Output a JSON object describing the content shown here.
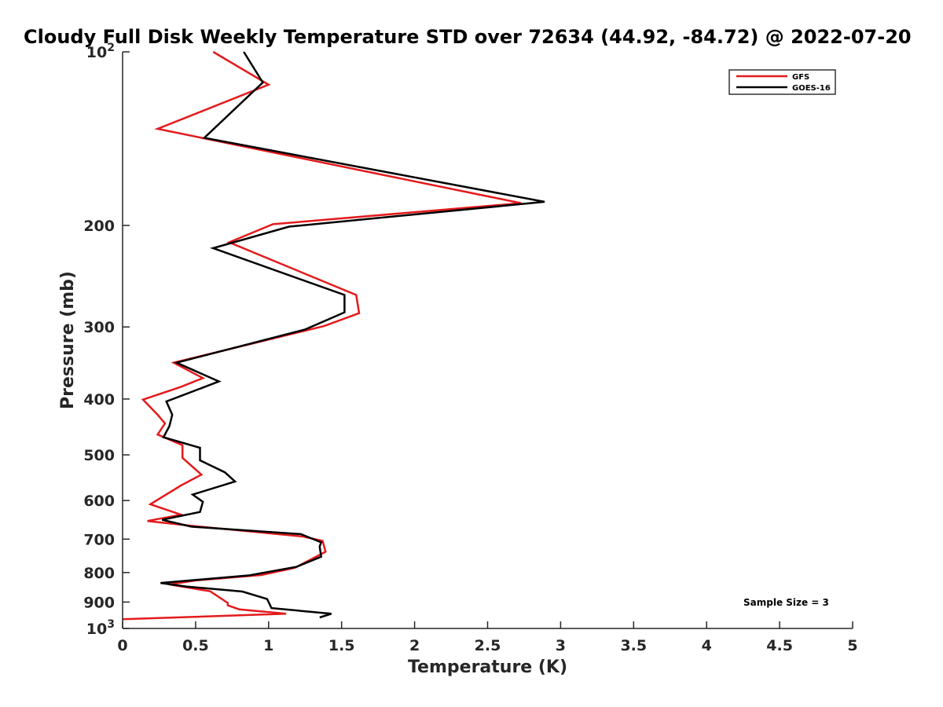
{
  "chart_data": {
    "type": "line",
    "title": "Cloudy Full Disk Weekly Temperature STD over 72634 (44.92, -84.72) @ 2022-07-20",
    "xlabel": "Temperature (K)",
    "ylabel": "Pressure (mb)",
    "xlim": [
      0,
      5
    ],
    "ylim": [
      1000,
      100
    ],
    "yscale": "log",
    "y_reversed": true,
    "grid": false,
    "legend_position": "top-right",
    "x_ticks": [
      {
        "value": 0,
        "label": "0"
      },
      {
        "value": 0.5,
        "label": "0.5"
      },
      {
        "value": 1,
        "label": "1"
      },
      {
        "value": 1.5,
        "label": "1.5"
      },
      {
        "value": 2,
        "label": "2"
      },
      {
        "value": 2.5,
        "label": "2.5"
      },
      {
        "value": 3,
        "label": "3"
      },
      {
        "value": 3.5,
        "label": "3.5"
      },
      {
        "value": 4,
        "label": "4"
      },
      {
        "value": 4.5,
        "label": "4.5"
      },
      {
        "value": 5,
        "label": "5"
      }
    ],
    "y_ticks": [
      {
        "value": 100,
        "base": "10",
        "exp": "2"
      },
      {
        "value": 200,
        "label": "200"
      },
      {
        "value": 300,
        "label": "300"
      },
      {
        "value": 400,
        "label": "400"
      },
      {
        "value": 500,
        "label": "500"
      },
      {
        "value": 600,
        "label": "600"
      },
      {
        "value": 700,
        "label": "700"
      },
      {
        "value": 800,
        "label": "800"
      },
      {
        "value": 900,
        "label": "900"
      },
      {
        "value": 1000,
        "base": "10",
        "exp": "3"
      }
    ],
    "annotation": "Sample Size = 3",
    "series": [
      {
        "name": "GFS",
        "color": "#e41a1c",
        "points": [
          [
            0.62,
            100
          ],
          [
            1.0,
            114
          ],
          [
            0.24,
            136
          ],
          [
            2.73,
            183
          ],
          [
            1.03,
            199
          ],
          [
            0.73,
            214
          ],
          [
            1.6,
            264
          ],
          [
            1.62,
            284
          ],
          [
            1.38,
            299
          ],
          [
            0.35,
            346
          ],
          [
            0.55,
            368
          ],
          [
            0.4,
            381
          ],
          [
            0.14,
            401
          ],
          [
            0.24,
            426
          ],
          [
            0.29,
            441
          ],
          [
            0.24,
            461
          ],
          [
            0.41,
            481
          ],
          [
            0.41,
            506
          ],
          [
            0.54,
            541
          ],
          [
            0.4,
            565
          ],
          [
            0.19,
            609
          ],
          [
            0.4,
            635
          ],
          [
            0.17,
            651
          ],
          [
            0.48,
            664
          ],
          [
            1.24,
            693
          ],
          [
            1.37,
            705
          ],
          [
            1.39,
            736
          ],
          [
            1.18,
            785
          ],
          [
            0.95,
            808
          ],
          [
            0.51,
            825
          ],
          [
            0.32,
            839
          ],
          [
            0.6,
            862
          ],
          [
            0.72,
            903
          ],
          [
            0.72,
            912
          ],
          [
            0.8,
            927
          ],
          [
            1.12,
            943
          ],
          [
            0,
            964
          ]
        ]
      },
      {
        "name": "GOES-16",
        "color": "#000000",
        "points": [
          [
            0.83,
            100
          ],
          [
            0.96,
            113
          ],
          [
            0.56,
            141
          ],
          [
            2.89,
            182
          ],
          [
            1.14,
            201
          ],
          [
            0.62,
            219
          ],
          [
            1.52,
            264
          ],
          [
            1.52,
            283
          ],
          [
            1.25,
            303
          ],
          [
            0.37,
            346
          ],
          [
            0.66,
            373
          ],
          [
            0.3,
            404
          ],
          [
            0.34,
            426
          ],
          [
            0.32,
            446
          ],
          [
            0.28,
            466
          ],
          [
            0.53,
            486
          ],
          [
            0.53,
            511
          ],
          [
            0.7,
            536
          ],
          [
            0.77,
            556
          ],
          [
            0.48,
            586
          ],
          [
            0.55,
            603
          ],
          [
            0.53,
            628
          ],
          [
            0.27,
            648
          ],
          [
            0.47,
            666
          ],
          [
            1.22,
            686
          ],
          [
            1.36,
            709
          ],
          [
            1.35,
            721
          ],
          [
            1.36,
            751
          ],
          [
            1.19,
            782
          ],
          [
            0.87,
            809
          ],
          [
            0.26,
            834
          ],
          [
            0.44,
            846
          ],
          [
            0.82,
            863
          ],
          [
            0.99,
            889
          ],
          [
            1.02,
            922
          ],
          [
            1.43,
            943
          ],
          [
            1.35,
            957
          ]
        ]
      }
    ]
  }
}
